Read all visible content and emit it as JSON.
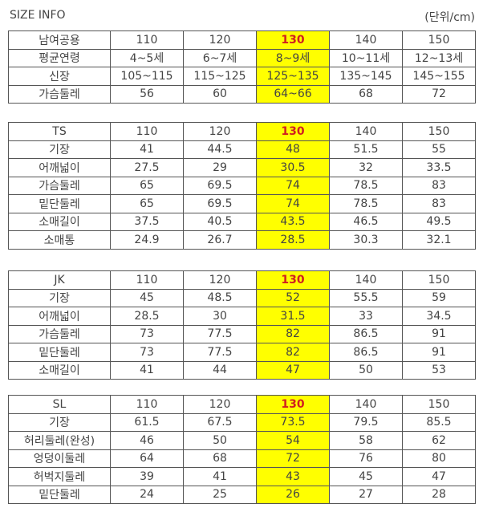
{
  "title": "SIZE INFO",
  "unit": "(단위/cm)",
  "highlight_color": "#ffff00",
  "highlight_size_color": "#d02020",
  "highlight_column": "130",
  "tables": [
    {
      "header": [
        "남여공용",
        "110",
        "120",
        "130",
        "140",
        "150"
      ],
      "rows": [
        [
          "평균연령",
          "4~5세",
          "6~7세",
          "8~9세",
          "10~11세",
          "12~13세"
        ],
        [
          "신장",
          "105~115",
          "115~125",
          "125~135",
          "135~145",
          "145~155"
        ],
        [
          "가슴둘레",
          "56",
          "60",
          "64~66",
          "68",
          "72"
        ]
      ]
    },
    {
      "header": [
        "TS",
        "110",
        "120",
        "130",
        "140",
        "150"
      ],
      "rows": [
        [
          "기장",
          "41",
          "44.5",
          "48",
          "51.5",
          "55"
        ],
        [
          "어깨넓이",
          "27.5",
          "29",
          "30.5",
          "32",
          "33.5"
        ],
        [
          "가슴둘레",
          "65",
          "69.5",
          "74",
          "78.5",
          "83"
        ],
        [
          "밑단둘레",
          "65",
          "69.5",
          "74",
          "78.5",
          "83"
        ],
        [
          "소매길이",
          "37.5",
          "40.5",
          "43.5",
          "46.5",
          "49.5"
        ],
        [
          "소매통",
          "24.9",
          "26.7",
          "28.5",
          "30.3",
          "32.1"
        ]
      ]
    },
    {
      "header": [
        "JK",
        "110",
        "120",
        "130",
        "140",
        "150"
      ],
      "rows": [
        [
          "기장",
          "45",
          "48.5",
          "52",
          "55.5",
          "59"
        ],
        [
          "어깨넓이",
          "28.5",
          "30",
          "31.5",
          "33",
          "34.5"
        ],
        [
          "가슴둘레",
          "73",
          "77.5",
          "82",
          "86.5",
          "91"
        ],
        [
          "밑단둘레",
          "73",
          "77.5",
          "82",
          "86.5",
          "91"
        ],
        [
          "소매길이",
          "41",
          "44",
          "47",
          "50",
          "53"
        ]
      ]
    },
    {
      "header": [
        "SL",
        "110",
        "120",
        "130",
        "140",
        "150"
      ],
      "rows": [
        [
          "기장",
          "61.5",
          "67.5",
          "73.5",
          "79.5",
          "85.5"
        ],
        [
          "허리둘레(완성)",
          "46",
          "50",
          "54",
          "58",
          "62"
        ],
        [
          "엉덩이둘레",
          "64",
          "68",
          "72",
          "76",
          "80"
        ],
        [
          "허벅지둘레",
          "39",
          "41",
          "43",
          "45",
          "47"
        ],
        [
          "밑단둘레",
          "24",
          "25",
          "26",
          "27",
          "28"
        ]
      ]
    }
  ]
}
